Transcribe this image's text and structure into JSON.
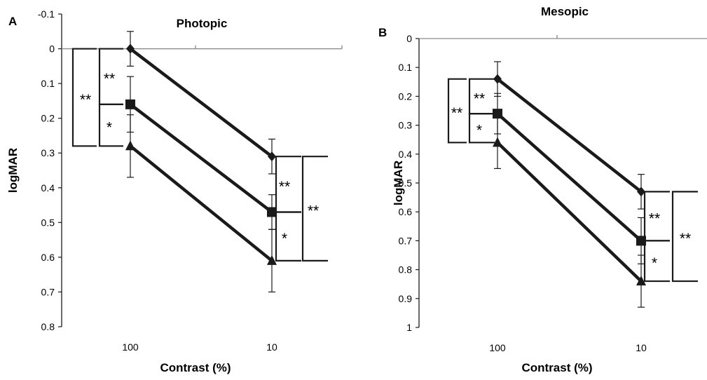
{
  "chart_data": [
    {
      "type": "line",
      "panel_label": "A",
      "title": "Photopic",
      "xlabel": "Contrast (%)",
      "ylabel": "logMAR",
      "categories": [
        "100",
        "10"
      ],
      "y_axis_inverted": true,
      "ylim": [
        -0.1,
        0.8
      ],
      "yticks": [
        "-0.1",
        "0",
        "0.1",
        "0.2",
        "0.3",
        "0.4",
        "0.5",
        "0.6",
        "0.7",
        "0.8"
      ],
      "grid": false,
      "series": [
        {
          "marker": "diamond",
          "values": [
            0.0,
            0.31
          ],
          "errors": [
            0.05,
            0.05
          ]
        },
        {
          "marker": "square",
          "values": [
            0.16,
            0.47
          ],
          "errors": [
            0.08,
            0.05
          ]
        },
        {
          "marker": "triangle",
          "values": [
            0.28,
            0.61
          ],
          "errors": [
            0.09,
            0.09
          ]
        }
      ],
      "annotations": [
        {
          "text": "**",
          "category": "100",
          "between": [
            0,
            1
          ]
        },
        {
          "text": "*",
          "category": "100",
          "between": [
            1,
            2
          ]
        },
        {
          "text": "**",
          "category": "100",
          "between": [
            0,
            2
          ]
        },
        {
          "text": "**",
          "category": "10",
          "between": [
            0,
            1
          ]
        },
        {
          "text": "*",
          "category": "10",
          "between": [
            1,
            2
          ]
        },
        {
          "text": "**",
          "category": "10",
          "between": [
            0,
            2
          ]
        }
      ]
    },
    {
      "type": "line",
      "panel_label": "B",
      "title": "Mesopic",
      "xlabel": "Contrast (%)",
      "ylabel": "logMAR",
      "categories": [
        "100",
        "10"
      ],
      "y_axis_inverted": true,
      "ylim": [
        0,
        1
      ],
      "yticks": [
        "0",
        "0.1",
        "0.2",
        "0.3",
        "0.4",
        "0.5",
        "0.6",
        "0.7",
        "0.8",
        "0.9",
        "1"
      ],
      "grid": false,
      "series": [
        {
          "marker": "diamond",
          "values": [
            0.14,
            0.53
          ],
          "errors": [
            0.06,
            0.06
          ]
        },
        {
          "marker": "square",
          "values": [
            0.26,
            0.7
          ],
          "errors": [
            0.07,
            0.08
          ]
        },
        {
          "marker": "triangle",
          "values": [
            0.36,
            0.84
          ],
          "errors": [
            0.09,
            0.09
          ]
        }
      ],
      "annotations": [
        {
          "text": "**",
          "category": "100",
          "between": [
            0,
            1
          ]
        },
        {
          "text": "*",
          "category": "100",
          "between": [
            1,
            2
          ]
        },
        {
          "text": "**",
          "category": "100",
          "between": [
            0,
            2
          ]
        },
        {
          "text": "**",
          "category": "10",
          "between": [
            0,
            1
          ]
        },
        {
          "text": "*",
          "category": "10",
          "between": [
            1,
            2
          ]
        },
        {
          "text": "**",
          "category": "10",
          "between": [
            0,
            2
          ]
        }
      ]
    }
  ]
}
